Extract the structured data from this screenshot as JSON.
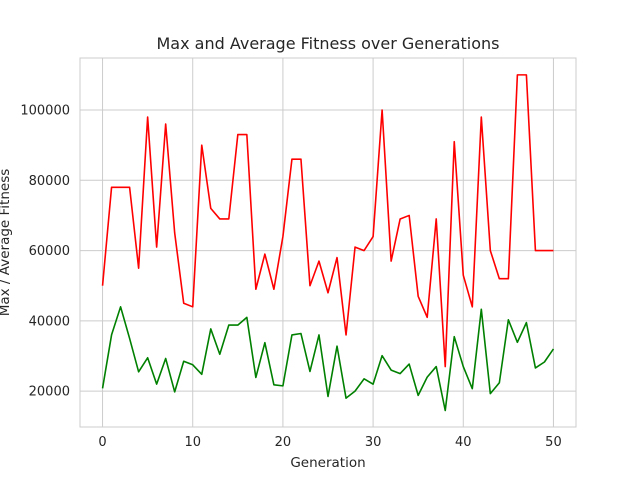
{
  "chart_data": {
    "type": "line",
    "title": "Max and Average Fitness over Generations",
    "xlabel": "Generation",
    "ylabel": "Max / Average Fitness",
    "xlim": [
      -2.5,
      52.5
    ],
    "ylim": [
      9800,
      114800
    ],
    "grid": true,
    "x_ticks": [
      0,
      10,
      20,
      30,
      40,
      50
    ],
    "x_tick_labels": [
      "0",
      "10",
      "20",
      "30",
      "40",
      "50"
    ],
    "y_ticks": [
      20000,
      40000,
      60000,
      80000,
      100000
    ],
    "y_tick_labels": [
      "20000",
      "40000",
      "60000",
      "80000",
      "100000"
    ],
    "x": [
      0,
      1,
      2,
      3,
      4,
      5,
      6,
      7,
      8,
      9,
      10,
      11,
      12,
      13,
      14,
      15,
      16,
      17,
      18,
      19,
      20,
      21,
      22,
      23,
      24,
      25,
      26,
      27,
      28,
      29,
      30,
      31,
      32,
      33,
      34,
      35,
      36,
      37,
      38,
      39,
      40,
      41,
      42,
      43,
      44,
      45,
      46,
      47,
      48,
      49,
      50
    ],
    "series": [
      {
        "color": "#ff0000",
        "values": [
          50000,
          78000,
          78000,
          78000,
          55000,
          98000,
          61000,
          96000,
          65000,
          45000,
          44000,
          90000,
          72000,
          69000,
          69000,
          93000,
          93000,
          49000,
          59000,
          49000,
          64000,
          86000,
          86000,
          50000,
          57000,
          48000,
          58000,
          36000,
          61000,
          60000,
          64000,
          100000,
          57000,
          69000,
          70000,
          47000,
          41000,
          69000,
          27000,
          91000,
          53000,
          44000,
          98000,
          60000,
          52000,
          52000,
          110000,
          110000,
          60000,
          60000,
          60000
        ]
      },
      {
        "color": "#008000",
        "values": [
          20800,
          36000,
          44000,
          35000,
          25500,
          29500,
          22000,
          29300,
          19800,
          28500,
          27500,
          24800,
          37700,
          30500,
          38800,
          38800,
          41000,
          23900,
          33800,
          21800,
          21500,
          36000,
          36400,
          25600,
          36000,
          18500,
          32800,
          18000,
          20000,
          23500,
          22000,
          30100,
          26000,
          25000,
          27700,
          18800,
          24000,
          27000,
          14500,
          35500,
          27000,
          20700,
          43300,
          19300,
          22400,
          40300,
          33900,
          39500,
          26600,
          28300,
          32000
        ]
      }
    ]
  }
}
